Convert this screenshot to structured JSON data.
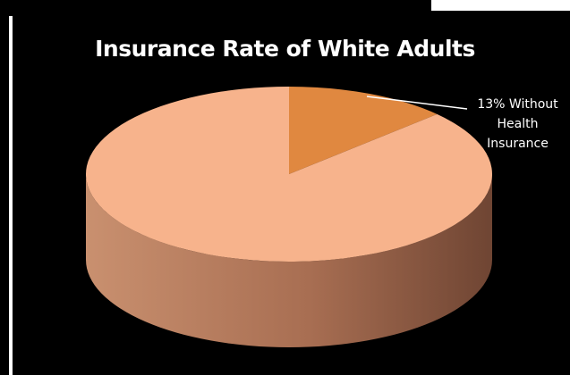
{
  "chart_data": {
    "type": "pie",
    "title": "Insurance Rate of White Adults",
    "slices": [
      {
        "label": "",
        "value": 87,
        "color": "#f7b38c"
      },
      {
        "label": "13% Without Health Insurance",
        "value": 13,
        "color": "#e08840"
      }
    ],
    "style": "3d",
    "legend": "none"
  }
}
